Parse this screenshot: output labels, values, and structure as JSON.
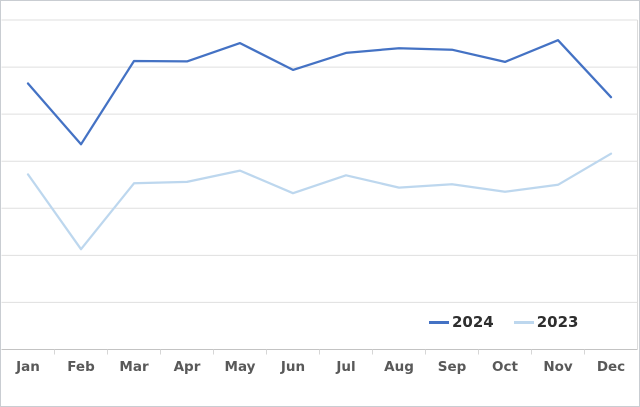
{
  "chart": {
    "background_color": "#ffffff",
    "frame_border_color": "#c9cdd2",
    "grid_color": "#dfdfdf",
    "axis_color": "#c3c3c3",
    "tick_color": "#d6d6d6",
    "right_border_color": "#dcdcdc",
    "x_label_color": "#595959"
  },
  "chart_data": {
    "type": "line",
    "title": "",
    "xlabel": "",
    "ylabel": "",
    "categories": [
      "Jan",
      "Feb",
      "Mar",
      "Apr",
      "May",
      "Jun",
      "Jul",
      "Aug",
      "Sep",
      "Oct",
      "Nov",
      "Dec"
    ],
    "series": [
      {
        "name": "2024",
        "color": "#4472C4",
        "values": [
          56.5,
          43.6,
          61.3,
          61.2,
          65.1,
          59.4,
          63.0,
          64.0,
          63.7,
          61.1,
          65.7,
          53.6
        ]
      },
      {
        "name": "2023",
        "color": "#BDD7EE",
        "values": [
          37.2,
          21.3,
          35.3,
          35.6,
          38.0,
          33.2,
          37.0,
          34.4,
          35.1,
          33.5,
          35.0,
          41.6
        ]
      }
    ],
    "ylim": [
      0,
      70
    ],
    "grid_step": 10,
    "y_axis_tick_labels_visible": false,
    "grid": "horizontal-only",
    "legend_position": "bottom-right",
    "note_units": "relative units estimated from unlabeled gridlines (1 gridline = 10 units)"
  },
  "legend": {
    "items": [
      {
        "label": "2024",
        "color": "#4472C4"
      },
      {
        "label": "2023",
        "color": "#BDD7EE"
      }
    ]
  }
}
